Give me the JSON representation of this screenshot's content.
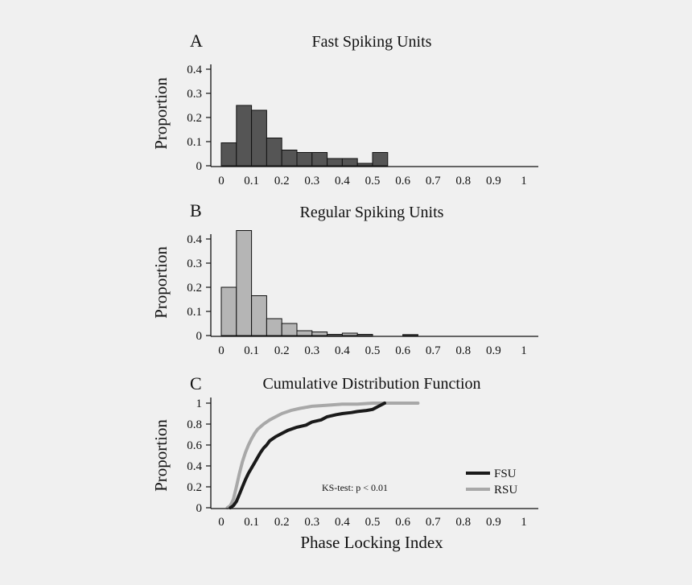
{
  "chart_data": [
    {
      "type": "bar",
      "panel_letter": "A",
      "title": "Fast Spiking Units",
      "xlabel": "",
      "ylabel": "Proportion",
      "bin_width": 0.05,
      "bin_starts": [
        0,
        0.05,
        0.1,
        0.15,
        0.2,
        0.25,
        0.3,
        0.35,
        0.4,
        0.45,
        0.5
      ],
      "values": [
        0.095,
        0.25,
        0.23,
        0.115,
        0.065,
        0.055,
        0.055,
        0.03,
        0.03,
        0.01,
        0.055
      ],
      "xlim": [
        0,
        1
      ],
      "ylim": [
        0,
        0.4
      ],
      "xticks": [
        0,
        0.1,
        0.2,
        0.3,
        0.4,
        0.5,
        0.6,
        0.7,
        0.8,
        0.9,
        1
      ],
      "xtick_labels": [
        "0",
        "0.1",
        "0.2",
        "0.3",
        "0.4",
        "0.5",
        "0.6",
        "0.7",
        "0.8",
        "0.9",
        "1"
      ],
      "yticks": [
        0,
        0.1,
        0.2,
        0.3,
        0.4
      ],
      "ytick_labels": [
        "0",
        "0.1",
        "0.2",
        "0.3",
        "0.4"
      ],
      "color": "#555555"
    },
    {
      "type": "bar",
      "panel_letter": "B",
      "title": "Regular Spiking Units",
      "xlabel": "",
      "ylabel": "Proportion",
      "bin_width": 0.05,
      "bin_starts": [
        0,
        0.05,
        0.1,
        0.15,
        0.2,
        0.25,
        0.3,
        0.35,
        0.4,
        0.45,
        0.5,
        0.55,
        0.6,
        0.65
      ],
      "values": [
        0.2,
        0.435,
        0.165,
        0.07,
        0.05,
        0.02,
        0.015,
        0.005,
        0.01,
        0.005,
        0.0,
        0.0,
        0.004,
        0.0
      ],
      "xlim": [
        0,
        1
      ],
      "ylim": [
        0,
        0.4
      ],
      "xticks": [
        0,
        0.1,
        0.2,
        0.3,
        0.4,
        0.5,
        0.6,
        0.7,
        0.8,
        0.9,
        1
      ],
      "xtick_labels": [
        "0",
        "0.1",
        "0.2",
        "0.3",
        "0.4",
        "0.5",
        "0.6",
        "0.7",
        "0.8",
        "0.9",
        "1"
      ],
      "yticks": [
        0,
        0.1,
        0.2,
        0.3,
        0.4
      ],
      "ytick_labels": [
        "0",
        "0.1",
        "0.2",
        "0.3",
        "0.4"
      ],
      "color": "#b5b5b5"
    },
    {
      "type": "line",
      "panel_letter": "C",
      "title": "Cumulative Distribution Function",
      "xlabel": "Phase Locking Index",
      "ylabel": "Proportion",
      "xlim": [
        0,
        1
      ],
      "ylim": [
        0,
        1
      ],
      "xticks": [
        0,
        0.1,
        0.2,
        0.3,
        0.4,
        0.5,
        0.6,
        0.7,
        0.8,
        0.9,
        1
      ],
      "xtick_labels": [
        "0",
        "0.1",
        "0.2",
        "0.3",
        "0.4",
        "0.5",
        "0.6",
        "0.7",
        "0.8",
        "0.9",
        "1"
      ],
      "yticks": [
        0,
        0.2,
        0.4,
        0.6,
        0.8,
        1
      ],
      "ytick_labels": [
        "0",
        "0.2",
        "0.4",
        "0.6",
        "0.8",
        "1"
      ],
      "annotation": "KS-test: p < 0.01",
      "legend_position": "bottom-right",
      "series": [
        {
          "name": "FSU",
          "color": "#1a1a1a",
          "x": [
            0.03,
            0.04,
            0.05,
            0.06,
            0.07,
            0.08,
            0.09,
            0.1,
            0.11,
            0.12,
            0.13,
            0.14,
            0.15,
            0.16,
            0.18,
            0.2,
            0.22,
            0.25,
            0.28,
            0.3,
            0.33,
            0.35,
            0.38,
            0.4,
            0.43,
            0.45,
            0.48,
            0.5,
            0.52,
            0.54
          ],
          "y": [
            0,
            0.02,
            0.06,
            0.13,
            0.2,
            0.27,
            0.33,
            0.38,
            0.43,
            0.48,
            0.53,
            0.57,
            0.6,
            0.64,
            0.68,
            0.71,
            0.74,
            0.77,
            0.79,
            0.82,
            0.84,
            0.87,
            0.89,
            0.9,
            0.91,
            0.92,
            0.93,
            0.94,
            0.97,
            1.0
          ]
        },
        {
          "name": "RSU",
          "color": "#a8a8a8",
          "x": [
            0.02,
            0.03,
            0.04,
            0.05,
            0.06,
            0.07,
            0.08,
            0.09,
            0.1,
            0.11,
            0.12,
            0.14,
            0.16,
            0.18,
            0.2,
            0.23,
            0.26,
            0.3,
            0.35,
            0.4,
            0.45,
            0.5,
            0.55,
            0.6,
            0.65
          ],
          "y": [
            0,
            0.02,
            0.08,
            0.2,
            0.33,
            0.44,
            0.53,
            0.6,
            0.66,
            0.71,
            0.75,
            0.8,
            0.84,
            0.87,
            0.9,
            0.93,
            0.95,
            0.97,
            0.98,
            0.99,
            0.99,
            1.0,
            1.0,
            1.0,
            1.0
          ]
        }
      ]
    }
  ]
}
